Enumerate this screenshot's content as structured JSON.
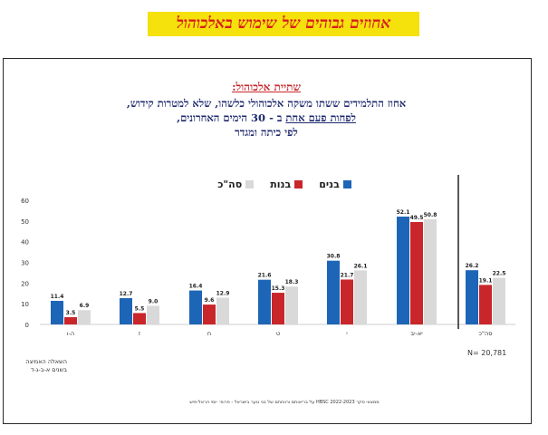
{
  "banner": "אחוזים גבוהים של שימוש באלכוהול",
  "heading": {
    "topic": "שתיית אלכוהול:",
    "line1": "אחוז התלמידים ששתו משקה אלכוהולי כלשהו, שלא למטרות קידוש,",
    "line2_underlined": "לפחות פעם אחת",
    "line2_rest": " ב - 30 הימים האחרונים,",
    "line3": "לפי כיתה ומגדר"
  },
  "question_note": "השאלה האמיצה בשנים א-ב-ג-ד",
  "n_label": "N= 20,781",
  "footer": "ממצאי סקר HBSC 2022-2023 על בריאותם ורווחתם של בני נוער בישראל - פרופ׳ יוסי הראל-פיש",
  "colors": {
    "boys": "#1d65b6",
    "girls": "#c8262a",
    "total": "#d9d9d9"
  },
  "chart_data": {
    "type": "bar",
    "categories": [
      "ה-ו",
      "ז",
      "ח",
      "ט",
      "י",
      "יא-יב",
      "סה\"כ"
    ],
    "series": [
      {
        "name": "בנים",
        "values": [
          11.4,
          12.7,
          16.4,
          21.6,
          30.8,
          52.1,
          26.2
        ]
      },
      {
        "name": "בנות",
        "values": [
          3.5,
          5.5,
          9.6,
          15.3,
          21.7,
          49.5,
          19.1
        ]
      },
      {
        "name": "סה\"כ",
        "values": [
          6.9,
          9.0,
          12.9,
          18.3,
          26.1,
          50.8,
          22.5
        ]
      }
    ],
    "data_labels": [
      [
        "11.4",
        "12.7",
        "16.4",
        "21.6",
        "30.8",
        "52.1",
        "26.2"
      ],
      [
        "3.5",
        "5.5",
        "9.6",
        "15.3",
        "21.7",
        "49.5",
        "19.1"
      ],
      [
        "6.9",
        "9.0",
        "12.9",
        "18.3",
        "26.1",
        "50.8",
        "22.5"
      ]
    ],
    "y_ticks": [
      "0",
      "10",
      "20",
      "30",
      "40",
      "50",
      "60"
    ],
    "ylim": [
      0,
      60
    ],
    "grid": false,
    "legend_position": "top"
  }
}
